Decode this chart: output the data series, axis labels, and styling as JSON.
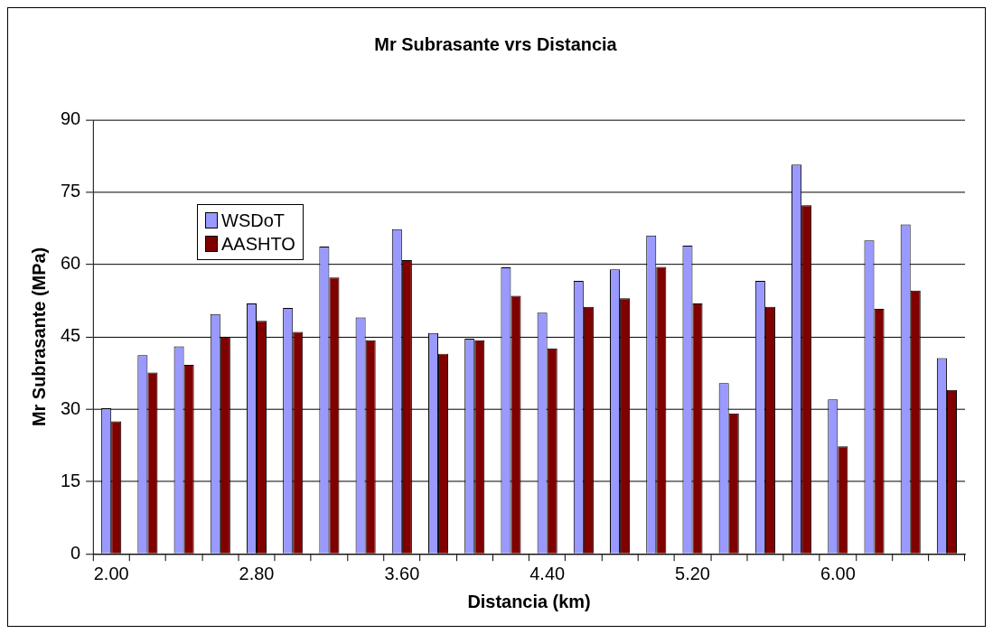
{
  "chart_data": {
    "type": "bar",
    "title": "Mr Subrasante vrs Distancia",
    "xlabel": "Distancia (km)",
    "ylabel": "Mr Subrasante (MPa)",
    "categories": [
      "2.00",
      null,
      null,
      null,
      "2.80",
      null,
      null,
      null,
      "3.60",
      null,
      null,
      null,
      "4.40",
      null,
      null,
      null,
      "5.20",
      null,
      null,
      null,
      "6.00",
      null,
      null,
      null
    ],
    "series": [
      {
        "name": "WSDoT",
        "color": "#9999ff",
        "values": [
          30.2,
          41.2,
          43,
          49.7,
          51.9,
          51,
          63.7,
          49,
          67.3,
          45.8,
          44.6,
          59.4,
          50,
          56.6,
          59,
          66,
          63.9,
          35.4,
          56.6,
          80.7,
          32,
          65,
          68.3,
          40.6
        ]
      },
      {
        "name": "AASHTO",
        "color": "#800000",
        "values": [
          27.5,
          37.6,
          39.2,
          45,
          48.3,
          46,
          57.3,
          44.3,
          60.9,
          41.5,
          44.3,
          53.5,
          42.6,
          51.2,
          53,
          59.5,
          51.9,
          29.1,
          51.2,
          72.3,
          22.3,
          50.8,
          54.6,
          34
        ]
      }
    ],
    "ylim": [
      0,
      90
    ],
    "yticks": [
      0,
      15,
      30,
      45,
      60,
      75,
      90
    ],
    "grid": "y",
    "legend": "top left"
  }
}
